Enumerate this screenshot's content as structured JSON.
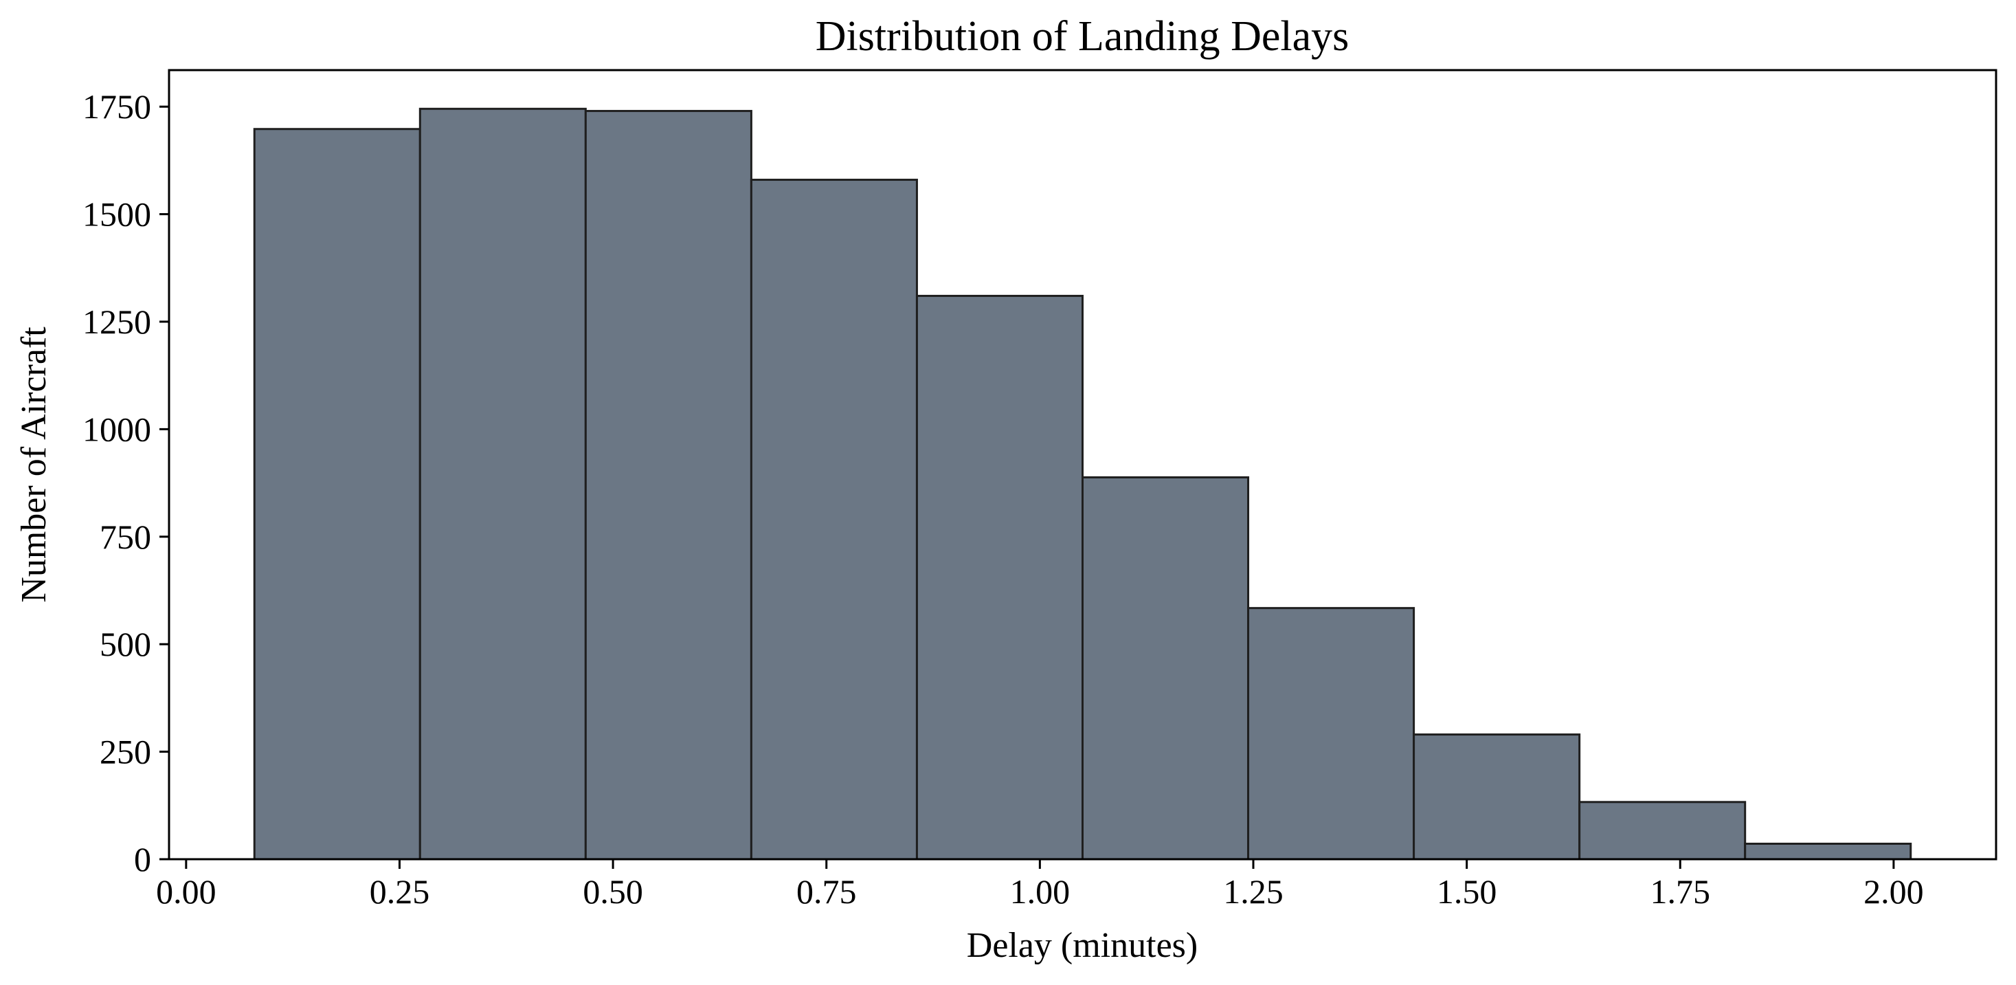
{
  "chart_data": {
    "type": "bar",
    "title": "Distribution of Landing Delays",
    "xlabel": "Delay (minutes)",
    "ylabel": "Number of Aircraft",
    "xlim": [
      -0.02,
      2.12
    ],
    "ylim": [
      0,
      1835
    ],
    "bins": [
      {
        "start": 0.08,
        "end": 0.274,
        "count": 1698
      },
      {
        "start": 0.274,
        "end": 0.468,
        "count": 1745
      },
      {
        "start": 0.468,
        "end": 0.662,
        "count": 1740
      },
      {
        "start": 0.662,
        "end": 0.856,
        "count": 1580
      },
      {
        "start": 0.856,
        "end": 1.05,
        "count": 1310
      },
      {
        "start": 1.05,
        "end": 1.244,
        "count": 888
      },
      {
        "start": 1.244,
        "end": 1.438,
        "count": 584
      },
      {
        "start": 1.438,
        "end": 1.632,
        "count": 290
      },
      {
        "start": 1.632,
        "end": 1.826,
        "count": 133
      },
      {
        "start": 1.826,
        "end": 2.02,
        "count": 36
      }
    ],
    "x_ticks": [
      "0.00",
      "0.25",
      "0.50",
      "0.75",
      "1.00",
      "1.25",
      "1.50",
      "1.75",
      "2.00"
    ],
    "y_ticks": [
      "0",
      "250",
      "500",
      "750",
      "1000",
      "1250",
      "1500",
      "1750"
    ],
    "grid": false,
    "legend": "none",
    "colors": {
      "bar_fill": "#6b7785",
      "bar_edge": "#1f1f1f"
    }
  }
}
